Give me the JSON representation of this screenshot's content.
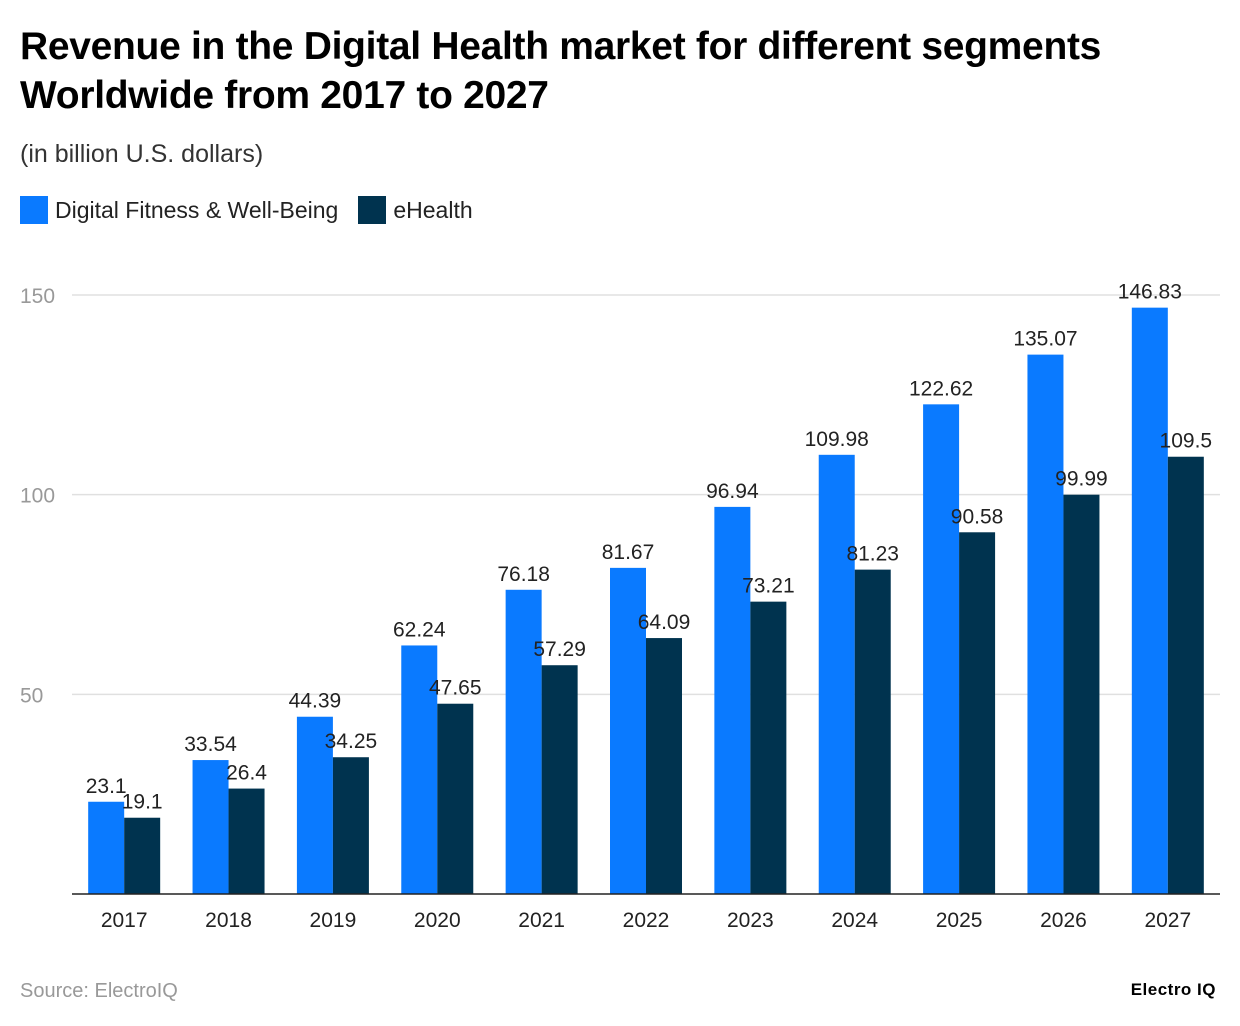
{
  "chart_data": {
    "type": "bar",
    "title": "Revenue in the Digital Health market for different segments Worldwide from 2017 to 2027",
    "subtitle": "(in billion U.S. dollars)",
    "categories": [
      "2017",
      "2018",
      "2019",
      "2020",
      "2021",
      "2022",
      "2023",
      "2024",
      "2025",
      "2026",
      "2027"
    ],
    "series": [
      {
        "name": "Digital Fitness & Well-Being",
        "color": "#0A7AFF",
        "values": [
          23.1,
          33.54,
          44.39,
          62.24,
          76.18,
          81.67,
          96.94,
          109.98,
          122.62,
          135.07,
          146.83
        ]
      },
      {
        "name": "eHealth",
        "color": "#00334F",
        "values": [
          19.1,
          26.4,
          34.25,
          47.65,
          57.29,
          64.09,
          73.21,
          81.23,
          90.58,
          99.99,
          109.5
        ]
      }
    ],
    "yticks": [
      50,
      100,
      150
    ],
    "ylim": [
      0,
      150
    ],
    "grid": true,
    "legend": "top-left"
  },
  "source": "Source: ElectroIQ",
  "logo": "Electro IQ"
}
